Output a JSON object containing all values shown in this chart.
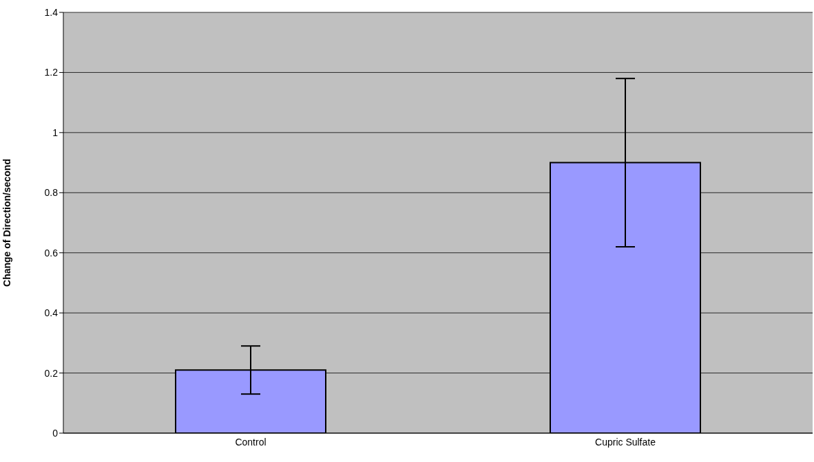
{
  "chart_data": {
    "type": "bar",
    "ylabel": "Change of Direction/second",
    "categories": [
      "Control",
      "Cupric Sulfate"
    ],
    "values": [
      0.21,
      0.9
    ],
    "errors": [
      [
        0.13,
        0.29
      ],
      [
        0.62,
        1.18
      ]
    ],
    "color": "#9999ff",
    "ylim": [
      0,
      1.4
    ],
    "yticks": [
      0,
      0.2,
      0.4,
      0.6,
      0.8,
      1,
      1.2,
      1.4
    ],
    "grid": "y"
  }
}
